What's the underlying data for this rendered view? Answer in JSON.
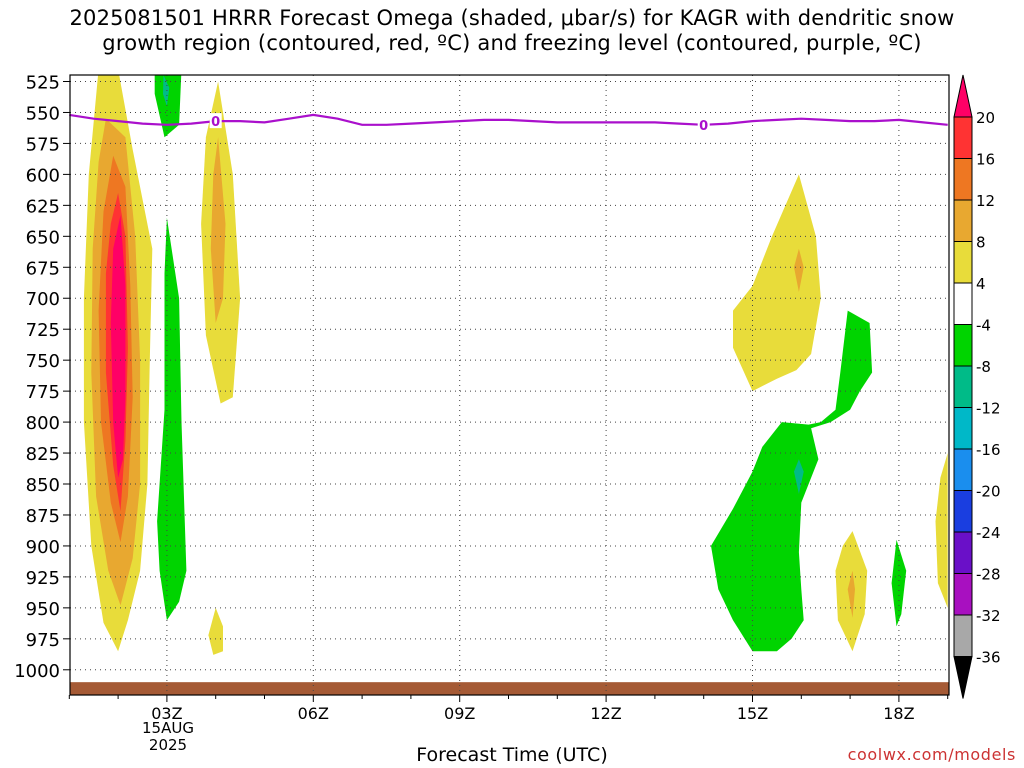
{
  "title": {
    "line1": "2025081501 HRRR Forecast Omega (shaded, μbar/s) for KAGR with dendritic snow",
    "line2": "growth region (contoured, red, ºC) and freezing level (contoured, purple, ºC)"
  },
  "xlabel": "Forecast Time (UTC)",
  "credit": "coolwx.com/models",
  "date_label": [
    "15AUG",
    "2025"
  ],
  "chart_data": {
    "type": "time-height cross section",
    "x_axis": {
      "units": "hours",
      "ticks": [
        {
          "hour": 3,
          "label": "03Z"
        },
        {
          "hour": 6,
          "label": "06Z"
        },
        {
          "hour": 9,
          "label": "09Z"
        },
        {
          "hour": 12,
          "label": "12Z"
        },
        {
          "hour": 15,
          "label": "15Z"
        },
        {
          "hour": 18,
          "label": "18Z"
        }
      ],
      "range": [
        1,
        19
      ]
    },
    "y_axis": {
      "units": "hPa",
      "ticks": [
        525,
        550,
        575,
        600,
        625,
        650,
        675,
        700,
        725,
        750,
        775,
        800,
        825,
        850,
        875,
        900,
        925,
        950,
        975,
        1000
      ],
      "range": [
        515,
        1012
      ]
    },
    "colorbar": {
      "labels": [
        "20",
        "16",
        "12",
        "8",
        "4",
        "-4",
        "-8",
        "-12",
        "-16",
        "-20",
        "-24",
        "-28",
        "-32",
        "-36"
      ],
      "colors": [
        "#ff0066",
        "#ff3333",
        "#ee7722",
        "#e8a830",
        "#e8dc3a",
        "#ffffff",
        "#00d400",
        "#00bb88",
        "#00b8c8",
        "#1a8eee",
        "#1a3ee0",
        "#6a10c8",
        "#a810c0",
        "#a8a8a8",
        "#000000"
      ]
    },
    "freezing_level": {
      "color": "#aa10cc",
      "label": "0",
      "label_hours": [
        4.0,
        14.0
      ],
      "points": [
        [
          1,
          552
        ],
        [
          1.5,
          555
        ],
        [
          2,
          557
        ],
        [
          2.5,
          559
        ],
        [
          3,
          560
        ],
        [
          3.5,
          559
        ],
        [
          4,
          557
        ],
        [
          4.5,
          557
        ],
        [
          5,
          558
        ],
        [
          5.5,
          555
        ],
        [
          6,
          552
        ],
        [
          6.5,
          555
        ],
        [
          7,
          560
        ],
        [
          7.5,
          560
        ],
        [
          8,
          559
        ],
        [
          8.5,
          558
        ],
        [
          9,
          557
        ],
        [
          9.5,
          556
        ],
        [
          10,
          556
        ],
        [
          10.5,
          557
        ],
        [
          11,
          558
        ],
        [
          11.5,
          558
        ],
        [
          12,
          558
        ],
        [
          12.5,
          558
        ],
        [
          13,
          558
        ],
        [
          13.5,
          559
        ],
        [
          14,
          560
        ],
        [
          14.5,
          559
        ],
        [
          15,
          557
        ],
        [
          15.5,
          556
        ],
        [
          16,
          555
        ],
        [
          16.5,
          556
        ],
        [
          17,
          557
        ],
        [
          17.5,
          557
        ],
        [
          18,
          556
        ],
        [
          18.5,
          558
        ],
        [
          19,
          560
        ]
      ]
    },
    "terrain": {
      "color": "#a55a35",
      "surface_pressure_hPa": 1010
    },
    "omega_regions": [
      {
        "value_class": "4 to 8",
        "color": "#e8dc3a",
        "points": [
          [
            1.6,
            515
          ],
          [
            2.0,
            515
          ],
          [
            2.3,
            580
          ],
          [
            2.7,
            660
          ],
          [
            2.65,
            750
          ],
          [
            2.6,
            850
          ],
          [
            2.45,
            920
          ],
          [
            2.2,
            960
          ],
          [
            2.0,
            985
          ],
          [
            1.7,
            962
          ],
          [
            1.45,
            900
          ],
          [
            1.3,
            800
          ],
          [
            1.3,
            700
          ],
          [
            1.4,
            600
          ]
        ]
      },
      {
        "value_class": "8 to 12",
        "color": "#e8a830",
        "points": [
          [
            1.75,
            555
          ],
          [
            2.15,
            570
          ],
          [
            2.35,
            650
          ],
          [
            2.45,
            750
          ],
          [
            2.45,
            850
          ],
          [
            2.3,
            910
          ],
          [
            2.05,
            948
          ],
          [
            1.8,
            920
          ],
          [
            1.55,
            860
          ],
          [
            1.45,
            760
          ],
          [
            1.48,
            660
          ],
          [
            1.6,
            590
          ]
        ]
      },
      {
        "value_class": "12 to 16",
        "color": "#ee7722",
        "points": [
          [
            1.9,
            585
          ],
          [
            2.15,
            610
          ],
          [
            2.25,
            690
          ],
          [
            2.3,
            780
          ],
          [
            2.2,
            860
          ],
          [
            2.05,
            897
          ],
          [
            1.85,
            865
          ],
          [
            1.65,
            800
          ],
          [
            1.6,
            710
          ],
          [
            1.7,
            630
          ]
        ]
      },
      {
        "value_class": "16 to 20",
        "color": "#ff3333",
        "points": [
          [
            2.0,
            615
          ],
          [
            2.15,
            650
          ],
          [
            2.2,
            740
          ],
          [
            2.15,
            815
          ],
          [
            2.05,
            872
          ],
          [
            1.9,
            835
          ],
          [
            1.75,
            760
          ],
          [
            1.75,
            680
          ],
          [
            1.85,
            640
          ]
        ]
      },
      {
        "value_class": ">20",
        "color": "#ff0066",
        "points": [
          [
            2.05,
            633
          ],
          [
            2.15,
            690
          ],
          [
            2.15,
            780
          ],
          [
            2.1,
            830
          ],
          [
            2.0,
            845
          ],
          [
            1.9,
            800
          ],
          [
            1.85,
            720
          ],
          [
            1.9,
            660
          ]
        ]
      },
      {
        "value_class": "4 to 8",
        "color": "#e8dc3a",
        "points": [
          [
            4.05,
            525
          ],
          [
            4.35,
            600
          ],
          [
            4.5,
            700
          ],
          [
            4.35,
            780
          ],
          [
            4.1,
            785
          ],
          [
            3.8,
            730
          ],
          [
            3.7,
            640
          ],
          [
            3.8,
            570
          ]
        ]
      },
      {
        "value_class": "8 to 12",
        "color": "#e8a830",
        "points": [
          [
            4.05,
            570
          ],
          [
            4.2,
            640
          ],
          [
            4.15,
            700
          ],
          [
            4.0,
            720
          ],
          [
            3.9,
            660
          ],
          [
            3.95,
            600
          ]
        ]
      },
      {
        "value_class": "4 to 8",
        "color": "#e8dc3a",
        "points": [
          [
            4.0,
            950
          ],
          [
            4.15,
            965
          ],
          [
            4.15,
            985
          ],
          [
            3.95,
            988
          ],
          [
            3.85,
            972
          ]
        ]
      },
      {
        "value_class": "-4 to -8",
        "color": "#00d400",
        "points": [
          [
            2.75,
            515
          ],
          [
            3.3,
            515
          ],
          [
            3.25,
            560
          ],
          [
            2.95,
            570
          ],
          [
            2.75,
            535
          ]
        ]
      },
      {
        "value_class": "-4 to -8",
        "color": "#00d400",
        "points": [
          [
            3.0,
            635
          ],
          [
            3.25,
            700
          ],
          [
            3.3,
            800
          ],
          [
            3.4,
            920
          ],
          [
            3.25,
            945
          ],
          [
            3.0,
            960
          ],
          [
            2.85,
            920
          ],
          [
            2.8,
            880
          ],
          [
            2.95,
            790
          ],
          [
            2.95,
            680
          ]
        ]
      },
      {
        "value_class": "-8 to -12",
        "color": "#00bb88",
        "points": [
          [
            2.93,
            520
          ],
          [
            3.05,
            530
          ],
          [
            3.0,
            545
          ],
          [
            2.92,
            535
          ]
        ]
      },
      {
        "value_class": "4 to 8",
        "color": "#e8dc3a",
        "points": [
          [
            15.95,
            600
          ],
          [
            16.3,
            650
          ],
          [
            16.4,
            700
          ],
          [
            16.2,
            745
          ],
          [
            15.9,
            758
          ],
          [
            15.5,
            765
          ],
          [
            15.0,
            775
          ],
          [
            14.6,
            740
          ],
          [
            14.6,
            710
          ],
          [
            15.0,
            690
          ],
          [
            15.4,
            650
          ]
        ]
      },
      {
        "value_class": "8 to 12",
        "color": "#e8a830",
        "points": [
          [
            15.95,
            660
          ],
          [
            16.05,
            675
          ],
          [
            15.95,
            695
          ],
          [
            15.85,
            675
          ]
        ]
      },
      {
        "value_class": "-4 to -8",
        "color": "#00d400",
        "points": [
          [
            16.95,
            710
          ],
          [
            17.4,
            720
          ],
          [
            17.45,
            760
          ],
          [
            17.2,
            775
          ],
          [
            17.0,
            790
          ],
          [
            16.6,
            800
          ],
          [
            16.2,
            805
          ],
          [
            16.35,
            830
          ],
          [
            16.0,
            865
          ],
          [
            15.95,
            905
          ],
          [
            16.0,
            935
          ],
          [
            16.05,
            960
          ],
          [
            15.8,
            975
          ],
          [
            15.5,
            985
          ],
          [
            15.0,
            985
          ],
          [
            14.6,
            960
          ],
          [
            14.3,
            935
          ],
          [
            14.15,
            900
          ],
          [
            14.6,
            870
          ],
          [
            15.0,
            840
          ],
          [
            15.2,
            820
          ],
          [
            15.6,
            800
          ],
          [
            16.15,
            802
          ],
          [
            16.4,
            800
          ],
          [
            16.7,
            790
          ],
          [
            16.8,
            760
          ]
        ]
      },
      {
        "value_class": "-8 to -12",
        "color": "#00bb88",
        "points": [
          [
            15.95,
            830
          ],
          [
            16.05,
            840
          ],
          [
            15.95,
            858
          ],
          [
            15.85,
            840
          ]
        ]
      },
      {
        "value_class": "4 to 8",
        "color": "#e8dc3a",
        "points": [
          [
            17.05,
            888
          ],
          [
            17.35,
            920
          ],
          [
            17.3,
            955
          ],
          [
            17.05,
            985
          ],
          [
            16.75,
            960
          ],
          [
            16.7,
            920
          ],
          [
            16.85,
            900
          ]
        ]
      },
      {
        "value_class": "8 to 12",
        "color": "#e8a830",
        "points": [
          [
            17.05,
            920
          ],
          [
            17.1,
            935
          ],
          [
            17.05,
            958
          ],
          [
            16.95,
            935
          ]
        ]
      },
      {
        "value_class": "-4 to -8",
        "color": "#00d400",
        "points": [
          [
            17.95,
            895
          ],
          [
            18.15,
            920
          ],
          [
            18.05,
            955
          ],
          [
            17.95,
            965
          ],
          [
            17.85,
            930
          ]
        ]
      },
      {
        "value_class": "4 to 8",
        "color": "#e8dc3a",
        "points": [
          [
            19.0,
            825
          ],
          [
            19.0,
            950
          ],
          [
            18.8,
            930
          ],
          [
            18.75,
            880
          ],
          [
            18.85,
            845
          ]
        ]
      }
    ]
  }
}
